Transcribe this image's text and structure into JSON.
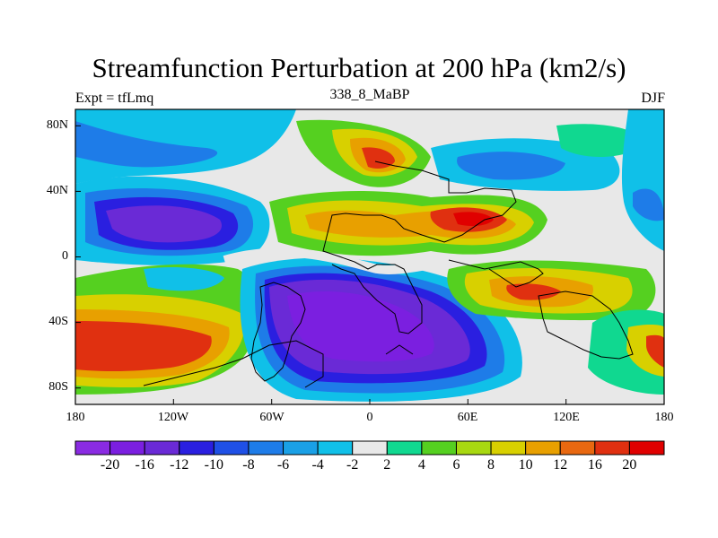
{
  "title": "Streamfunction Perturbation at 200 hPa (km2/s)",
  "subtitle_left": "Expt = tfLmq",
  "subtitle_center": "338_8_MaBP",
  "subtitle_right": "DJF",
  "map": {
    "y_tick_labels": [
      "80N",
      "40N",
      "0",
      "40S",
      "80S"
    ],
    "x_tick_labels": [
      "180",
      "120W",
      "60W",
      "0",
      "60E",
      "120E",
      "180"
    ],
    "background_color": "#e8e8e8",
    "coastline_color": "#000000"
  },
  "colorbar": {
    "tick_labels": [
      "-20",
      "-16",
      "-12",
      "-10",
      "-8",
      "-6",
      "-4",
      "-2",
      "2",
      "4",
      "6",
      "8",
      "10",
      "12",
      "16",
      "20"
    ],
    "colors": [
      "#8a2be2",
      "#7b1fe0",
      "#6a2ad6",
      "#2a1fe0",
      "#1f50e6",
      "#1e7ce8",
      "#1aa0e6",
      "#10c0e8",
      "#e8e8e8",
      "#10d890",
      "#55d020",
      "#a8d810",
      "#d8d000",
      "#e8a000",
      "#e86810",
      "#e03010",
      "#e00000"
    ]
  }
}
